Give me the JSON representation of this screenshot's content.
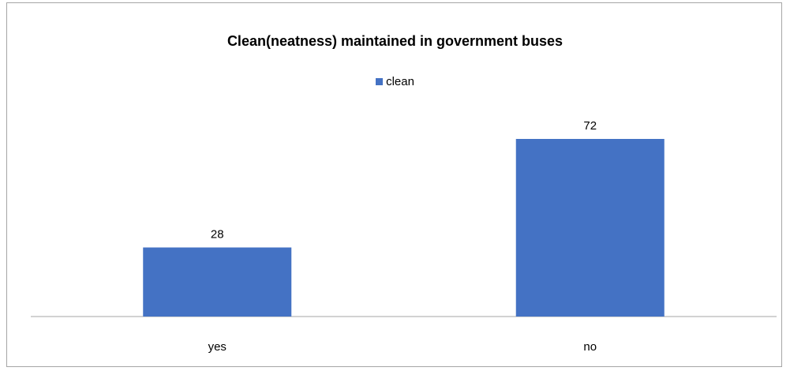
{
  "chart_data": {
    "type": "bar",
    "title": "Clean(neatness) maintained in government buses",
    "categories": [
      "yes",
      "no"
    ],
    "series": [
      {
        "name": "clean",
        "values": [
          28,
          72
        ],
        "color": "#4472c4"
      }
    ],
    "xlabel": "",
    "ylabel": "",
    "ylim": [
      0,
      80
    ],
    "grid": false,
    "legend_position": "top",
    "data_labels": true,
    "axis_color": "#a6a6a6"
  }
}
